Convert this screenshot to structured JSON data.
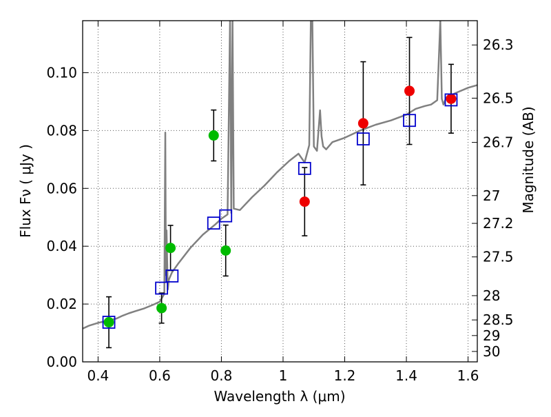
{
  "chart_data": {
    "type": "scatter",
    "xlabel": "Wavelength  λ (μm)",
    "ylabel": "Flux  Fν ( μJy )",
    "y2label": "Magnitude (AB)",
    "xlim": [
      0.35,
      1.63
    ],
    "ylim": [
      0.0,
      0.118
    ],
    "grid": true,
    "xticks": [
      0.4,
      0.6,
      0.8,
      1.0,
      1.2,
      1.4,
      1.6
    ],
    "xtick_labels": [
      "0.4",
      "0.6",
      "0.8",
      "1",
      "1.2",
      "1.4",
      "1.6"
    ],
    "yticks": [
      0.0,
      0.02,
      0.04,
      0.06,
      0.08,
      0.1
    ],
    "ytick_labels": [
      "0.00",
      "0.02",
      "0.04",
      "0.06",
      "0.08",
      "0.10"
    ],
    "y2ticks": [
      {
        "label": "26.3",
        "flux": 0.1096
      },
      {
        "label": "26.5",
        "flux": 0.0912
      },
      {
        "label": "26.7",
        "flux": 0.0759
      },
      {
        "label": "27",
        "flux": 0.0575
      },
      {
        "label": "27.2",
        "flux": 0.0479
      },
      {
        "label": "27.5",
        "flux": 0.0363
      },
      {
        "label": "28",
        "flux": 0.0229
      },
      {
        "label": "28.5",
        "flux": 0.0145
      },
      {
        "label": "29",
        "flux": 0.0091
      },
      {
        "label": "30",
        "flux": 0.0036
      }
    ],
    "colors": {
      "sed": "#808080",
      "green": "#00bb00",
      "red": "#ee0000",
      "model": "#0000cc",
      "errorbar": "#000000",
      "grid": "#555555"
    },
    "series": [
      {
        "marker": "circle",
        "color": "green",
        "points": [
          {
            "x": 0.435,
            "y": 0.0137,
            "err": 0.0088
          },
          {
            "x": 0.606,
            "y": 0.0186,
            "err": 0.0052
          },
          {
            "x": 0.635,
            "y": 0.0394,
            "err": 0.0078
          },
          {
            "x": 0.775,
            "y": 0.0783,
            "err": 0.0088
          },
          {
            "x": 0.814,
            "y": 0.0385,
            "err": 0.0088
          }
        ]
      },
      {
        "marker": "circle",
        "color": "red",
        "points": [
          {
            "x": 1.07,
            "y": 0.0554,
            "err": 0.0118
          },
          {
            "x": 1.26,
            "y": 0.0825,
            "err": 0.0213
          },
          {
            "x": 1.41,
            "y": 0.0937,
            "err": 0.0185
          },
          {
            "x": 1.545,
            "y": 0.091,
            "err": 0.0119
          }
        ]
      },
      {
        "marker": "square",
        "color": "model",
        "points": [
          {
            "x": 0.435,
            "y": 0.0137
          },
          {
            "x": 0.606,
            "y": 0.0255
          },
          {
            "x": 0.64,
            "y": 0.0297
          },
          {
            "x": 0.775,
            "y": 0.048
          },
          {
            "x": 0.814,
            "y": 0.0505
          },
          {
            "x": 1.07,
            "y": 0.0669
          },
          {
            "x": 1.26,
            "y": 0.0771
          },
          {
            "x": 1.41,
            "y": 0.0835
          },
          {
            "x": 1.545,
            "y": 0.0906
          }
        ]
      }
    ],
    "sed_line": {
      "x": [
        0.35,
        0.37,
        0.4,
        0.43,
        0.46,
        0.48,
        0.5,
        0.52,
        0.55,
        0.58,
        0.6,
        0.615,
        0.618,
        0.62,
        0.622,
        0.626,
        0.63,
        0.64,
        0.66,
        0.7,
        0.74,
        0.78,
        0.8,
        0.82,
        0.828,
        0.832,
        0.836,
        0.84,
        0.86,
        0.9,
        0.94,
        0.98,
        1.02,
        1.05,
        1.07,
        1.085,
        1.09,
        1.095,
        1.1,
        1.11,
        1.12,
        1.125,
        1.13,
        1.14,
        1.16,
        1.2,
        1.25,
        1.3,
        1.35,
        1.4,
        1.43,
        1.46,
        1.48,
        1.5,
        1.51,
        1.515,
        1.52,
        1.53,
        1.56,
        1.6,
        1.63
      ],
      "y": [
        0.0115,
        0.0125,
        0.0135,
        0.0142,
        0.015,
        0.016,
        0.0168,
        0.0175,
        0.0185,
        0.0198,
        0.0208,
        0.0235,
        0.0793,
        0.03,
        0.0455,
        0.025,
        0.0285,
        0.031,
        0.034,
        0.0395,
        0.044,
        0.0475,
        0.0495,
        0.051,
        0.118,
        0.0515,
        0.118,
        0.053,
        0.0525,
        0.057,
        0.061,
        0.0655,
        0.0695,
        0.072,
        0.069,
        0.075,
        0.118,
        0.118,
        0.0745,
        0.073,
        0.087,
        0.078,
        0.0745,
        0.0735,
        0.076,
        0.0775,
        0.08,
        0.082,
        0.0835,
        0.0855,
        0.0875,
        0.0885,
        0.089,
        0.0905,
        0.118,
        0.091,
        0.089,
        0.0915,
        0.093,
        0.0948,
        0.0957
      ]
    }
  }
}
